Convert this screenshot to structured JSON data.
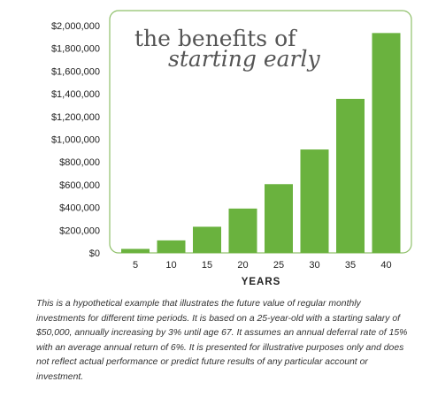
{
  "chart_data": {
    "type": "bar",
    "title_line1": "the benefits of",
    "title_line2": "starting early",
    "xlabel": "YEARS",
    "ylabel": "",
    "categories": [
      "5",
      "10",
      "15",
      "20",
      "25",
      "30",
      "35",
      "40"
    ],
    "values": [
      35000,
      110000,
      230000,
      390000,
      605000,
      910000,
      1355000,
      1935000
    ],
    "ylim": [
      0,
      2000000
    ],
    "y_ticks": [
      0,
      200000,
      400000,
      600000,
      800000,
      1000000,
      1200000,
      1400000,
      1600000,
      1800000,
      2000000
    ],
    "y_tick_labels": [
      "$0",
      "$200,000",
      "$400,000",
      "$600,000",
      "$800,000",
      "$1,000,000",
      "$1,200,000",
      "$1,400,000",
      "$1,600,000",
      "$1,800,000",
      "$2,000,000"
    ],
    "grid": false,
    "legend": "none",
    "colors": {
      "bar": "#6ab23e",
      "frame": "#8fc06a",
      "title": "#555555"
    }
  },
  "footnote": "This is a hypothetical example that illustrates the future value of regular monthly investments for different time periods. It is based on a 25-year-old with a starting salary of $50,000, annually increasing by 3% until age 67. It assumes an annual deferral rate of 15% with an average annual return of 6%. It is presented for illustrative purposes only and does not reflect actual performance or predict future results of any particular account or investment."
}
